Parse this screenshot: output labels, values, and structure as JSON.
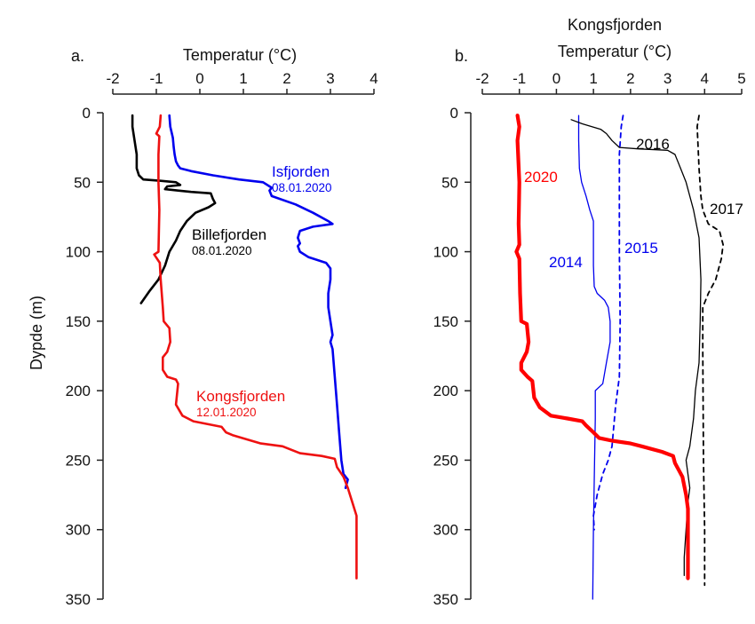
{
  "chart_data": [
    {
      "type": "line",
      "panel": "a.",
      "title": "",
      "xlabel": "Temperatur (°C)",
      "ylabel": "Dypde (m)",
      "xlim": [
        -2,
        4
      ],
      "ylim": [
        0,
        350
      ],
      "x_axis_position": "top",
      "y_inverted": true,
      "xticks": [
        -2,
        -1,
        0,
        1,
        2,
        3,
        4
      ],
      "yticks": [
        0,
        50,
        100,
        150,
        200,
        250,
        300,
        350
      ],
      "grid": false,
      "legend": "none (inline labels)",
      "series": [
        {
          "name": "Isfjorden",
          "date": "08.01.2020",
          "color": "#0000ee",
          "style": "solid",
          "points": [
            [
              -0.7,
              2
            ],
            [
              -0.68,
              10
            ],
            [
              -0.62,
              18
            ],
            [
              -0.6,
              25
            ],
            [
              -0.58,
              30
            ],
            [
              -0.55,
              35
            ],
            [
              -0.5,
              38
            ],
            [
              -0.45,
              40
            ],
            [
              -0.2,
              42
            ],
            [
              0.3,
              45
            ],
            [
              0.9,
              48
            ],
            [
              1.45,
              50
            ],
            [
              1.65,
              54
            ],
            [
              1.6,
              56
            ],
            [
              1.65,
              60
            ],
            [
              2.2,
              66
            ],
            [
              2.6,
              72
            ],
            [
              2.95,
              78
            ],
            [
              3.05,
              80
            ],
            [
              2.6,
              82
            ],
            [
              2.3,
              85
            ],
            [
              2.25,
              90
            ],
            [
              2.3,
              94
            ],
            [
              2.25,
              96
            ],
            [
              2.3,
              100
            ],
            [
              2.5,
              104
            ],
            [
              2.9,
              108
            ],
            [
              3.0,
              112
            ],
            [
              3.0,
              120
            ],
            [
              2.95,
              130
            ],
            [
              2.95,
              140
            ],
            [
              3.0,
              150
            ],
            [
              3.05,
              160
            ],
            [
              3.0,
              165
            ],
            [
              3.05,
              170
            ],
            [
              3.1,
              190
            ],
            [
              3.15,
              210
            ],
            [
              3.2,
              230
            ],
            [
              3.25,
              250
            ],
            [
              3.3,
              260
            ],
            [
              3.4,
              264
            ],
            [
              3.35,
              270
            ]
          ]
        },
        {
          "name": "Billefjorden",
          "date": "08.01.2020",
          "color": "#000000",
          "style": "solid",
          "points": [
            [
              -1.55,
              2
            ],
            [
              -1.55,
              10
            ],
            [
              -1.5,
              20
            ],
            [
              -1.45,
              30
            ],
            [
              -1.45,
              40
            ],
            [
              -1.4,
              45
            ],
            [
              -1.3,
              48
            ],
            [
              -0.9,
              49
            ],
            [
              -0.55,
              50
            ],
            [
              -0.45,
              52
            ],
            [
              -0.75,
              53
            ],
            [
              -0.8,
              55
            ],
            [
              -0.5,
              56
            ],
            [
              -0.2,
              57
            ],
            [
              0.25,
              58
            ],
            [
              0.3,
              62
            ],
            [
              0.35,
              65
            ],
            [
              0.2,
              68
            ],
            [
              -0.1,
              72
            ],
            [
              -0.3,
              78
            ],
            [
              -0.45,
              85
            ],
            [
              -0.55,
              92
            ],
            [
              -0.7,
              100
            ],
            [
              -0.8,
              110
            ],
            [
              -0.95,
              120
            ],
            [
              -1.15,
              128
            ],
            [
              -1.35,
              137
            ]
          ]
        },
        {
          "name": "Kongsfjorden",
          "date": "12.01.2020",
          "color": "#ee1111",
          "style": "solid",
          "points": [
            [
              -0.9,
              2
            ],
            [
              -0.92,
              10
            ],
            [
              -1.0,
              15
            ],
            [
              -0.93,
              17
            ],
            [
              -0.95,
              30
            ],
            [
              -0.95,
              50
            ],
            [
              -0.93,
              70
            ],
            [
              -0.95,
              100
            ],
            [
              -1.05,
              102
            ],
            [
              -0.92,
              108
            ],
            [
              -0.9,
              120
            ],
            [
              -0.85,
              140
            ],
            [
              -0.83,
              150
            ],
            [
              -0.7,
              155
            ],
            [
              -0.68,
              165
            ],
            [
              -0.75,
              172
            ],
            [
              -0.85,
              176
            ],
            [
              -0.85,
              185
            ],
            [
              -0.75,
              190
            ],
            [
              -0.55,
              192
            ],
            [
              -0.5,
              195
            ],
            [
              -0.55,
              210
            ],
            [
              -0.4,
              218
            ],
            [
              -0.15,
              222
            ],
            [
              0.5,
              226
            ],
            [
              0.6,
              230
            ],
            [
              0.75,
              232
            ],
            [
              1.4,
              238
            ],
            [
              1.9,
              240
            ],
            [
              2.3,
              245
            ],
            [
              2.8,
              247
            ],
            [
              3.1,
              249
            ],
            [
              3.15,
              255
            ],
            [
              3.3,
              262
            ],
            [
              3.4,
              270
            ],
            [
              3.5,
              280
            ],
            [
              3.6,
              290
            ],
            [
              3.6,
              310
            ],
            [
              3.6,
              335
            ]
          ]
        }
      ],
      "annotations": [
        {
          "text": "Isfjorden",
          "subtext": "08.01.2020",
          "color": "#0000ee"
        },
        {
          "text": "Billefjorden",
          "subtext": "08.01.2020",
          "color": "#000000"
        },
        {
          "text": "Kongsfjorden",
          "subtext": "12.01.2020",
          "color": "#ee1111"
        }
      ]
    },
    {
      "type": "line",
      "panel": "b.",
      "title": "Kongsfjorden",
      "xlabel": "Temperatur (°C)",
      "ylabel": "",
      "xlim": [
        -2,
        5
      ],
      "ylim": [
        0,
        350
      ],
      "x_axis_position": "top",
      "y_inverted": true,
      "xticks": [
        -2,
        -1,
        0,
        1,
        2,
        3,
        4,
        5
      ],
      "yticks": [
        0,
        50,
        100,
        150,
        200,
        250,
        300,
        350
      ],
      "grid": false,
      "legend": "none (inline labels)",
      "series": [
        {
          "name": "2014",
          "color": "#0000ee",
          "style": "solid-thin",
          "points": [
            [
              0.6,
              2
            ],
            [
              0.6,
              20
            ],
            [
              0.62,
              40
            ],
            [
              0.68,
              50
            ],
            [
              0.8,
              60
            ],
            [
              0.9,
              70
            ],
            [
              1.0,
              78
            ],
            [
              1.0,
              100
            ],
            [
              1.0,
              110
            ],
            [
              1.02,
              125
            ],
            [
              1.1,
              130
            ],
            [
              1.3,
              135
            ],
            [
              1.4,
              140
            ],
            [
              1.45,
              150
            ],
            [
              1.45,
              165
            ],
            [
              1.35,
              180
            ],
            [
              1.25,
              195
            ],
            [
              1.05,
              200
            ],
            [
              1.05,
              220
            ],
            [
              1.03,
              250
            ],
            [
              1.0,
              300
            ],
            [
              0.98,
              350
            ]
          ]
        },
        {
          "name": "2015",
          "color": "#0000ee",
          "style": "dashed",
          "points": [
            [
              1.8,
              2
            ],
            [
              1.75,
              10
            ],
            [
              1.7,
              30
            ],
            [
              1.7,
              100
            ],
            [
              1.72,
              150
            ],
            [
              1.7,
              190
            ],
            [
              1.6,
              210
            ],
            [
              1.5,
              240
            ],
            [
              1.4,
              250
            ],
            [
              1.25,
              260
            ],
            [
              1.1,
              275
            ],
            [
              1.0,
              290
            ],
            [
              1.02,
              300
            ]
          ]
        },
        {
          "name": "2016",
          "color": "#000000",
          "style": "solid-thin",
          "points": [
            [
              0.4,
              5
            ],
            [
              0.7,
              8
            ],
            [
              1.2,
              12
            ],
            [
              1.35,
              15
            ],
            [
              1.5,
              20
            ],
            [
              1.7,
              25
            ],
            [
              2.2,
              26
            ],
            [
              3.0,
              27
            ],
            [
              3.2,
              30
            ],
            [
              3.35,
              40
            ],
            [
              3.5,
              50
            ],
            [
              3.7,
              70
            ],
            [
              3.85,
              90
            ],
            [
              3.9,
              120
            ],
            [
              3.88,
              150
            ],
            [
              3.85,
              180
            ],
            [
              3.75,
              200
            ],
            [
              3.7,
              220
            ],
            [
              3.6,
              240
            ],
            [
              3.5,
              250
            ],
            [
              3.55,
              260
            ],
            [
              3.6,
              270
            ],
            [
              3.55,
              280
            ],
            [
              3.5,
              300
            ],
            [
              3.45,
              320
            ],
            [
              3.45,
              333
            ]
          ]
        },
        {
          "name": "2017",
          "color": "#000000",
          "style": "dashed",
          "points": [
            [
              3.85,
              2
            ],
            [
              3.8,
              10
            ],
            [
              3.85,
              40
            ],
            [
              3.9,
              60
            ],
            [
              3.95,
              70
            ],
            [
              4.1,
              80
            ],
            [
              4.4,
              85
            ],
            [
              4.5,
              95
            ],
            [
              4.45,
              105
            ],
            [
              4.3,
              120
            ],
            [
              4.1,
              130
            ],
            [
              3.95,
              140
            ],
            [
              3.95,
              170
            ],
            [
              3.97,
              250
            ],
            [
              4.0,
              300
            ],
            [
              4.0,
              340
            ]
          ]
        },
        {
          "name": "2020",
          "color": "#ff0000",
          "style": "solid-thick",
          "points": [
            [
              -1.05,
              2
            ],
            [
              -1.0,
              10
            ],
            [
              -1.05,
              20
            ],
            [
              -1.0,
              50
            ],
            [
              -1.02,
              80
            ],
            [
              -1.0,
              95
            ],
            [
              -1.08,
              100
            ],
            [
              -1.0,
              105
            ],
            [
              -0.98,
              130
            ],
            [
              -0.95,
              150
            ],
            [
              -0.8,
              152
            ],
            [
              -0.75,
              165
            ],
            [
              -0.8,
              172
            ],
            [
              -0.95,
              180
            ],
            [
              -0.95,
              185
            ],
            [
              -0.78,
              190
            ],
            [
              -0.65,
              193
            ],
            [
              -0.6,
              205
            ],
            [
              -0.45,
              212
            ],
            [
              -0.15,
              218
            ],
            [
              0.3,
              220
            ],
            [
              0.7,
              222
            ],
            [
              0.8,
              225
            ],
            [
              1.0,
              230
            ],
            [
              1.15,
              234
            ],
            [
              1.5,
              236
            ],
            [
              2.0,
              238
            ],
            [
              2.3,
              240
            ],
            [
              2.85,
              244
            ],
            [
              3.15,
              247
            ],
            [
              3.2,
              252
            ],
            [
              3.4,
              262
            ],
            [
              3.5,
              275
            ],
            [
              3.55,
              285
            ],
            [
              3.55,
              300
            ],
            [
              3.55,
              335
            ]
          ]
        }
      ],
      "annotations": [
        {
          "text": "2020",
          "color": "#ff0000"
        },
        {
          "text": "2014",
          "color": "#0000ee"
        },
        {
          "text": "2015",
          "color": "#0000ee"
        },
        {
          "text": "2016",
          "color": "#000000"
        },
        {
          "text": "2017",
          "color": "#000000"
        }
      ]
    }
  ]
}
